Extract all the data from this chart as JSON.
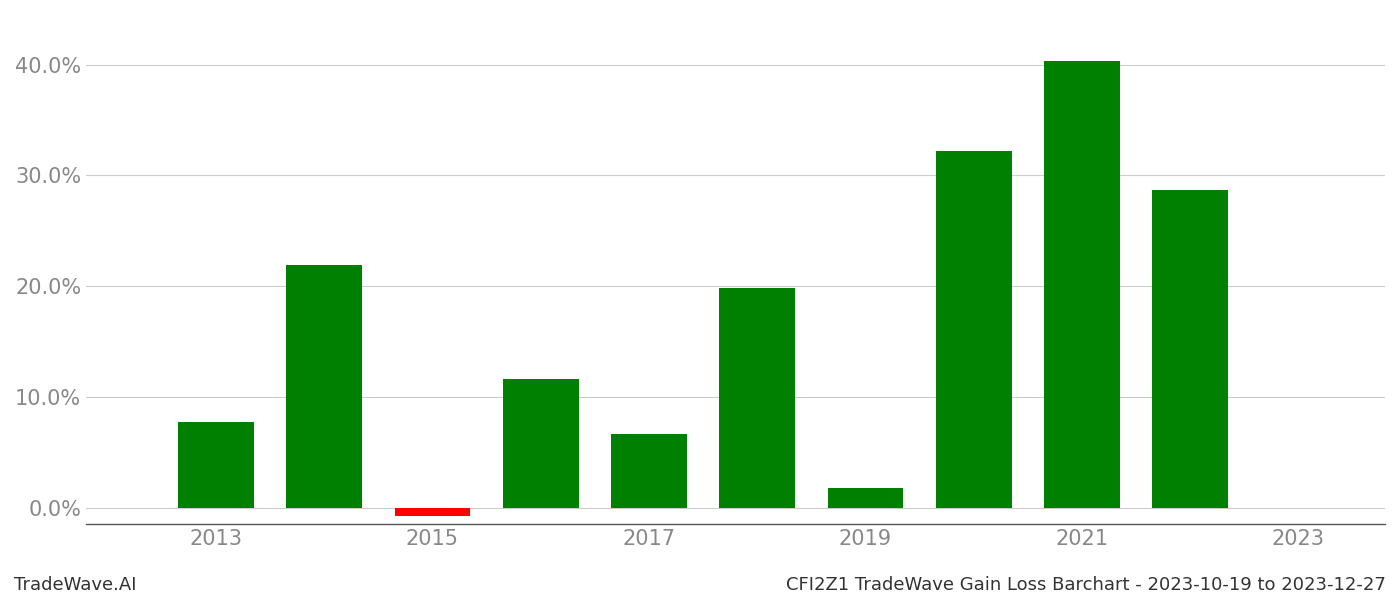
{
  "years": [
    2013,
    2014,
    2015,
    2016,
    2017,
    2018,
    2019,
    2020,
    2021,
    2022
  ],
  "values": [
    0.077,
    0.219,
    -0.008,
    0.116,
    0.066,
    0.198,
    0.018,
    0.322,
    0.403,
    0.287
  ],
  "colors": [
    "#008000",
    "#008000",
    "#ff0000",
    "#008000",
    "#008000",
    "#008000",
    "#008000",
    "#008000",
    "#008000",
    "#008000"
  ],
  "yticks": [
    0.0,
    0.1,
    0.2,
    0.3,
    0.4
  ],
  "xtick_labels": [
    "2013",
    "2015",
    "2017",
    "2019",
    "2021",
    "2023"
  ],
  "xtick_positions": [
    2013,
    2015,
    2017,
    2019,
    2021,
    2023
  ],
  "bar_width": 0.7,
  "ylim_min": -0.015,
  "ylim_max": 0.445,
  "xlim_min": 2011.8,
  "xlim_max": 2023.8,
  "background_color": "#ffffff",
  "grid_color": "#cccccc",
  "tick_label_color": "#888888",
  "footer_left": "TradeWave.AI",
  "footer_right": "CFI2Z1 TradeWave Gain Loss Barchart - 2023-10-19 to 2023-12-27",
  "footer_fontsize": 13,
  "tick_fontsize": 15
}
